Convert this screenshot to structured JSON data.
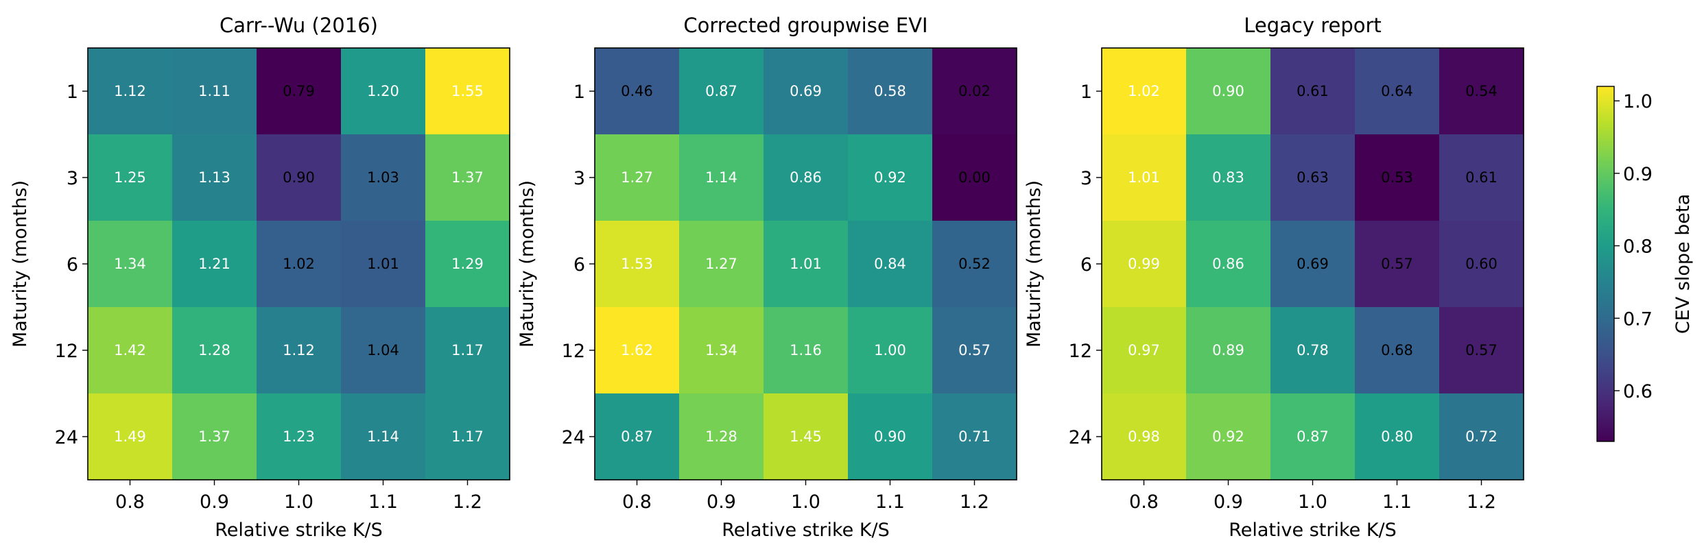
{
  "chart_data": [
    {
      "type": "heatmap",
      "title": "Carr--Wu (2016)",
      "xlabel": "Relative strike K/S",
      "ylabel": "Maturity (months)",
      "x": [
        "0.8",
        "0.9",
        "1.0",
        "1.1",
        "1.2"
      ],
      "y": [
        "1",
        "3",
        "6",
        "12",
        "24"
      ],
      "values": [
        [
          1.12,
          1.11,
          0.79,
          1.2,
          1.55
        ],
        [
          1.25,
          1.13,
          0.9,
          1.03,
          1.37
        ],
        [
          1.34,
          1.21,
          1.02,
          1.01,
          1.29
        ],
        [
          1.42,
          1.28,
          1.12,
          1.04,
          1.17
        ],
        [
          1.49,
          1.37,
          1.23,
          1.14,
          1.17
        ]
      ]
    },
    {
      "type": "heatmap",
      "title": "Corrected groupwise EVI",
      "xlabel": "Relative strike K/S",
      "ylabel": "Maturity (months)",
      "x": [
        "0.8",
        "0.9",
        "1.0",
        "1.1",
        "1.2"
      ],
      "y": [
        "1",
        "3",
        "6",
        "12",
        "24"
      ],
      "values": [
        [
          0.46,
          0.87,
          0.69,
          0.58,
          0.02
        ],
        [
          1.27,
          1.14,
          0.86,
          0.92,
          0.0
        ],
        [
          1.53,
          1.27,
          1.01,
          0.84,
          0.52
        ],
        [
          1.62,
          1.34,
          1.16,
          1.0,
          0.57
        ],
        [
          0.87,
          1.28,
          1.45,
          0.9,
          0.71
        ]
      ]
    },
    {
      "type": "heatmap",
      "title": "Legacy report",
      "xlabel": "Relative strike K/S",
      "ylabel": "Maturity (months)",
      "x": [
        "0.8",
        "0.9",
        "1.0",
        "1.1",
        "1.2"
      ],
      "y": [
        "1",
        "3",
        "6",
        "12",
        "24"
      ],
      "values": [
        [
          1.02,
          0.9,
          0.61,
          0.64,
          0.54
        ],
        [
          1.01,
          0.83,
          0.63,
          0.53,
          0.61
        ],
        [
          0.99,
          0.86,
          0.69,
          0.57,
          0.6
        ],
        [
          0.97,
          0.89,
          0.78,
          0.68,
          0.57
        ],
        [
          0.98,
          0.92,
          0.87,
          0.8,
          0.72
        ]
      ]
    }
  ],
  "colorbar": {
    "label": "CEV slope beta",
    "colormap": "viridis",
    "range": [
      0.53,
      1.02
    ],
    "ticks": [
      "0.6",
      "0.7",
      "0.8",
      "0.9",
      "1.0"
    ]
  }
}
